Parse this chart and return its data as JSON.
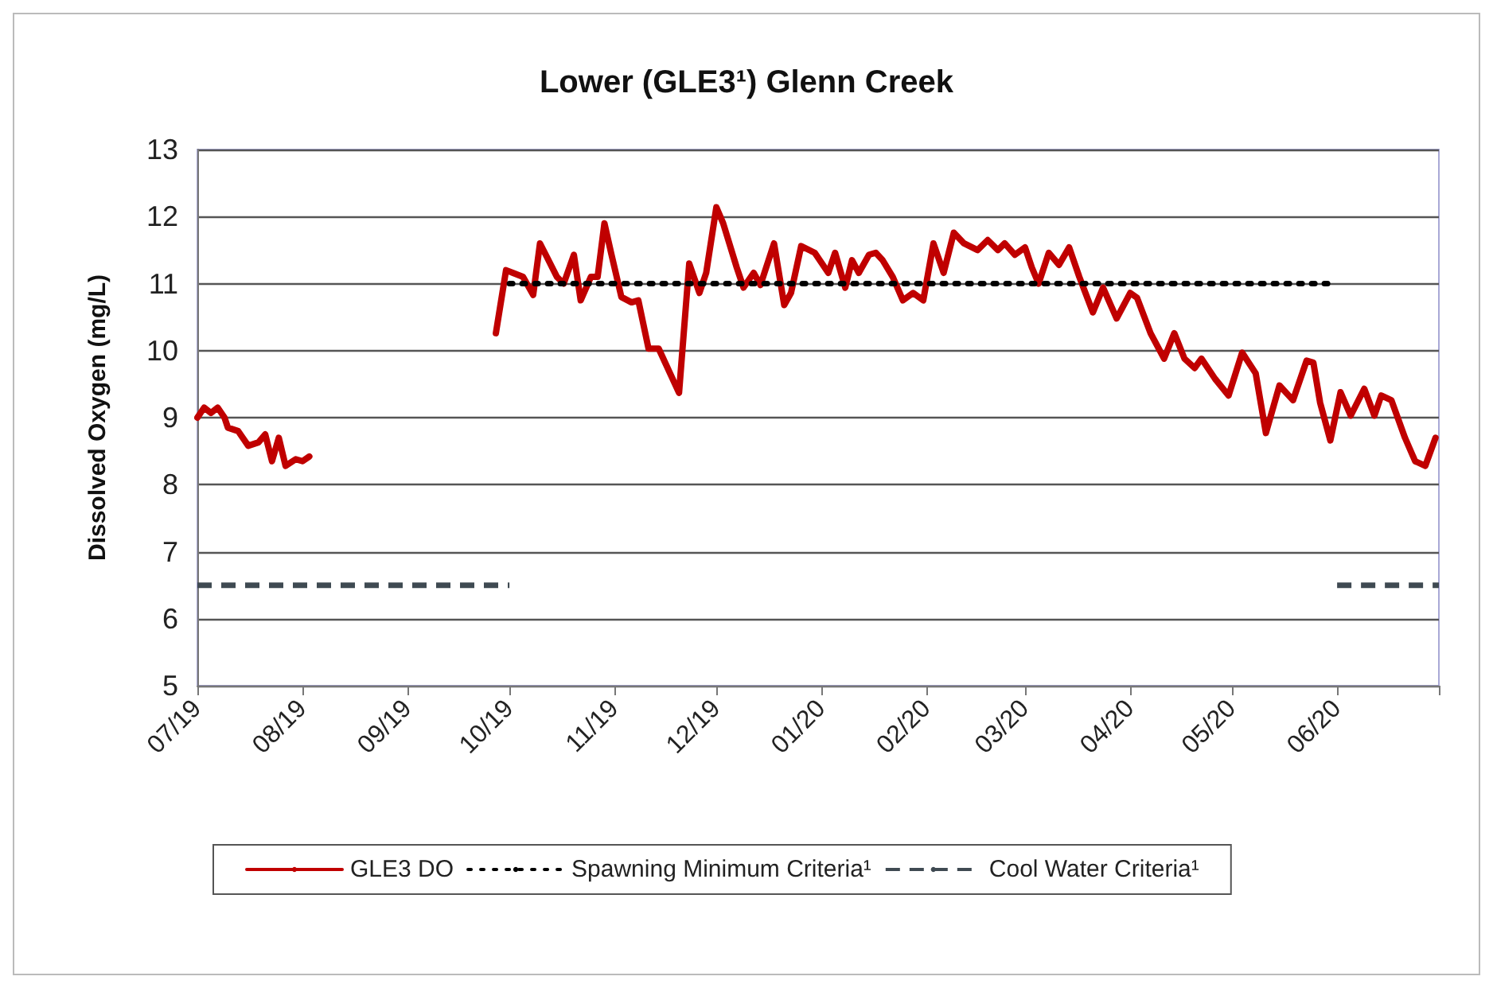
{
  "chart_data": {
    "type": "line",
    "title": "Lower (GLE3¹) Glenn Creek",
    "ylabel": "Dissolved Oxygen (mg/L)",
    "xlim": [
      "2019-07-01",
      "2020-07-01"
    ],
    "xticks": [
      {
        "value": "2019-07-01",
        "label": "07/19"
      },
      {
        "value": "2019-08-01",
        "label": "08/19"
      },
      {
        "value": "2019-09-01",
        "label": "09/19"
      },
      {
        "value": "2019-10-01",
        "label": "10/19"
      },
      {
        "value": "2019-11-01",
        "label": "11/19"
      },
      {
        "value": "2019-12-01",
        "label": "12/19"
      },
      {
        "value": "2020-01-01",
        "label": "01/20"
      },
      {
        "value": "2020-02-01",
        "label": "02/20"
      },
      {
        "value": "2020-03-01",
        "label": "03/20"
      },
      {
        "value": "2020-04-01",
        "label": "04/20"
      },
      {
        "value": "2020-05-01",
        "label": "05/20"
      },
      {
        "value": "2020-06-01",
        "label": "06/20"
      },
      {
        "value": "2020-07-01",
        "label": null
      }
    ],
    "ylim": [
      5,
      13
    ],
    "yticks": [
      5,
      6,
      7,
      8,
      9,
      10,
      11,
      12,
      13
    ],
    "grid": "y",
    "legend": "bottom",
    "marker": "none",
    "series": [
      {
        "name": "GLE3 DO",
        "color": "#c00000",
        "line_style": "solid",
        "x": [
          "2019-07-01",
          "2019-07-03",
          "2019-07-05",
          "2019-07-07",
          "2019-07-09",
          "2019-07-10",
          "2019-07-13",
          "2019-07-16",
          "2019-07-19",
          "2019-07-21",
          "2019-07-23",
          "2019-07-25",
          "2019-07-27",
          "2019-07-30",
          "2019-08-01",
          "2019-08-03",
          "2019-09-01",
          "2019-09-27",
          "2019-09-30",
          "2019-10-02",
          "2019-10-05",
          "2019-10-08",
          "2019-10-10",
          "2019-10-12",
          "2019-10-15",
          "2019-10-17",
          "2019-10-20",
          "2019-10-22",
          "2019-10-25",
          "2019-10-27",
          "2019-10-29",
          "2019-10-31",
          "2019-11-03",
          "2019-11-06",
          "2019-11-08",
          "2019-11-11",
          "2019-11-14",
          "2019-11-20",
          "2019-11-23",
          "2019-11-26",
          "2019-11-28",
          "2019-12-01",
          "2019-12-03",
          "2019-12-07",
          "2019-12-09",
          "2019-12-12",
          "2019-12-14",
          "2019-12-18",
          "2019-12-21",
          "2019-12-23",
          "2019-12-26",
          "2019-12-30",
          "2020-01-03",
          "2020-01-05",
          "2020-01-08",
          "2020-01-10",
          "2020-01-12",
          "2020-01-15",
          "2020-01-17",
          "2020-01-19",
          "2020-01-22",
          "2020-01-25",
          "2020-01-28",
          "2020-01-31",
          "2020-02-03",
          "2020-02-06",
          "2020-02-09",
          "2020-02-12",
          "2020-02-16",
          "2020-02-19",
          "2020-02-22",
          "2020-02-24",
          "2020-02-27",
          "2020-03-01",
          "2020-03-03",
          "2020-03-05",
          "2020-03-08",
          "2020-03-11",
          "2020-03-14",
          "2020-03-17",
          "2020-03-21",
          "2020-03-24",
          "2020-03-28",
          "2020-04-01",
          "2020-04-03",
          "2020-04-07",
          "2020-04-11",
          "2020-04-14",
          "2020-04-17",
          "2020-04-20",
          "2020-04-22",
          "2020-04-26",
          "2020-04-30",
          "2020-05-04",
          "2020-05-08",
          "2020-05-11",
          "2020-05-15",
          "2020-05-19",
          "2020-05-23",
          "2020-05-25",
          "2020-05-27",
          "2020-05-30",
          "2020-06-02",
          "2020-06-05",
          "2020-06-09",
          "2020-06-12",
          "2020-06-14",
          "2020-06-17",
          "2020-06-21",
          "2020-06-24",
          "2020-06-27",
          "2020-06-30"
        ],
        "values": [
          9.0,
          9.15,
          9.07,
          9.15,
          9.0,
          8.85,
          8.8,
          8.58,
          8.63,
          8.75,
          8.35,
          8.7,
          8.28,
          8.38,
          8.35,
          8.42,
          null,
          10.26,
          11.2,
          11.16,
          11.1,
          10.83,
          11.6,
          11.4,
          11.1,
          11.0,
          11.43,
          10.75,
          11.1,
          11.1,
          11.9,
          11.45,
          10.8,
          10.72,
          10.75,
          10.03,
          10.03,
          9.37,
          11.3,
          10.86,
          11.16,
          12.14,
          11.9,
          11.24,
          10.94,
          11.16,
          10.98,
          11.6,
          10.68,
          10.86,
          11.56,
          11.46,
          11.16,
          11.46,
          10.94,
          11.35,
          11.16,
          11.43,
          11.46,
          11.35,
          11.1,
          10.75,
          10.86,
          10.75,
          11.6,
          11.16,
          11.76,
          11.6,
          11.5,
          11.65,
          11.5,
          11.6,
          11.43,
          11.54,
          11.24,
          11.0,
          11.46,
          11.28,
          11.54,
          11.1,
          10.57,
          10.94,
          10.48,
          10.86,
          10.79,
          10.26,
          9.88,
          10.26,
          9.88,
          9.74,
          9.88,
          9.58,
          9.33,
          9.97,
          9.66,
          8.77,
          9.48,
          9.26,
          9.85,
          9.82,
          9.22,
          8.66,
          9.38,
          9.03,
          9.43,
          9.03,
          9.33,
          9.26,
          8.7,
          8.35,
          8.28,
          8.7
        ]
      },
      {
        "name": "Spawning Minimum Criteria¹",
        "color": "#000000",
        "line_style": "dotted",
        "x": [
          "2019-10-01",
          "2020-06-01"
        ],
        "values": [
          11,
          11
        ]
      },
      {
        "name": "Cool Water Criteria¹",
        "color": "#3f4a52",
        "line_style": "dashed",
        "x": [
          "2019-07-01",
          "2019-10-01",
          "2019-10-02",
          "2020-06-01",
          "2020-07-01"
        ],
        "values": [
          6.5,
          6.5,
          null,
          6.5,
          6.5
        ]
      }
    ]
  }
}
